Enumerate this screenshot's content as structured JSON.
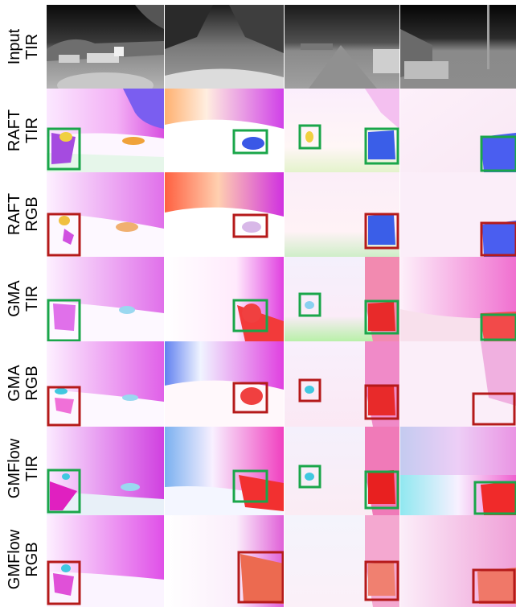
{
  "rows": [
    {
      "line1": "Input",
      "line2": "TIR"
    },
    {
      "line1": "RAFT",
      "line2": "TIR"
    },
    {
      "line1": "RAFT",
      "line2": "RGB"
    },
    {
      "line1": "GMA",
      "line2": "TIR"
    },
    {
      "line1": "GMA",
      "line2": "RGB"
    },
    {
      "line1": "GMFlow",
      "line2": "TIR"
    },
    {
      "line1": "GMFlow",
      "line2": "RGB"
    }
  ],
  "highlight_colors": {
    "tir": "#1aa64a",
    "rgb": "#b51a1a"
  },
  "columns": 4
}
